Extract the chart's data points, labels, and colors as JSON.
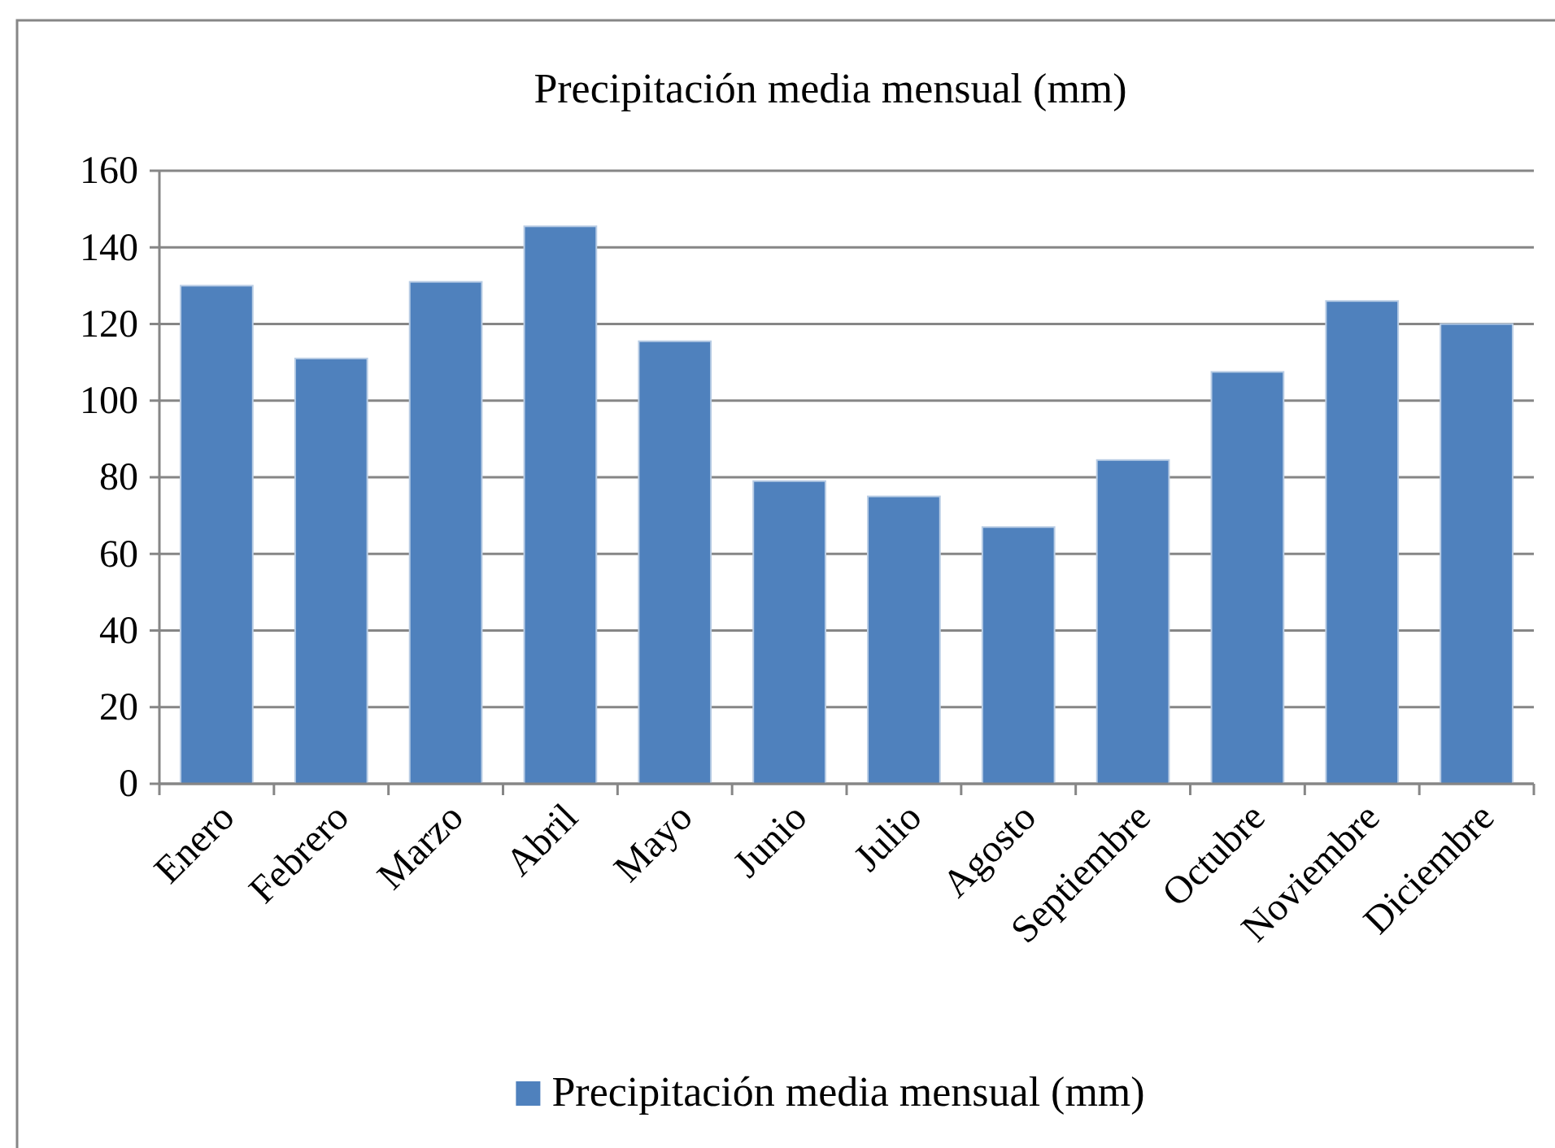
{
  "chart_data": {
    "type": "bar",
    "title": "Precipitación media mensual (mm)",
    "categories": [
      "Enero",
      "Febrero",
      "Marzo",
      "Abril",
      "Mayo",
      "Junio",
      "Julio",
      "Agosto",
      "Septiembre",
      "Octubre",
      "Noviembre",
      "Diciembre"
    ],
    "series": [
      {
        "name": "Precipitación media mensual (mm)",
        "color": "#4f81bd",
        "values": [
          130,
          111,
          131,
          145.5,
          115.5,
          79,
          75,
          67,
          84.5,
          107.5,
          126,
          120
        ]
      }
    ],
    "ylim": [
      0,
      160
    ],
    "yticks": [
      0,
      20,
      40,
      60,
      80,
      100,
      120,
      140,
      160
    ],
    "grid": "y",
    "legend": "bottom"
  }
}
